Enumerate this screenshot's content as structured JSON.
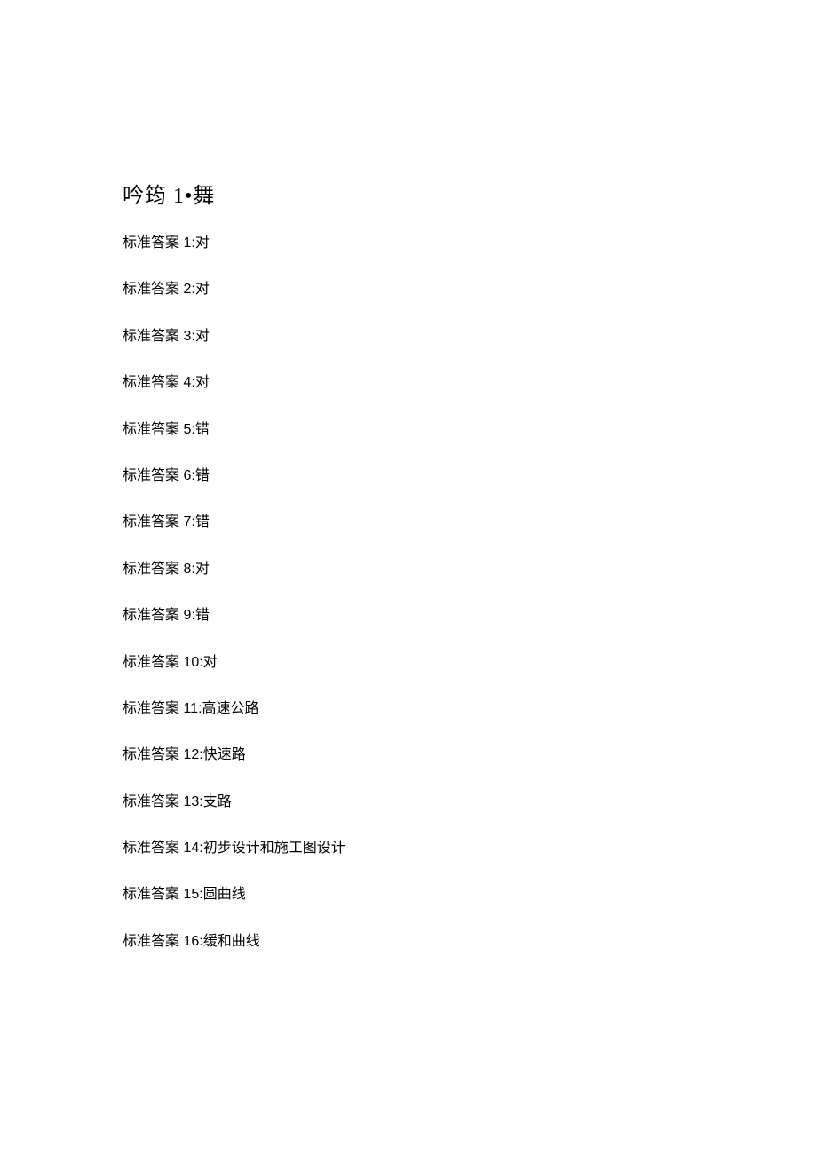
{
  "title": "吟筠 1•舞",
  "answer_label_prefix": "标准答案 ",
  "answers": [
    {
      "n": "1",
      "sep": ":",
      "value": "对"
    },
    {
      "n": "2",
      "sep": ":",
      "value": "对"
    },
    {
      "n": "3",
      "sep": ":",
      "value": "对"
    },
    {
      "n": "4",
      "sep": ":",
      "value": "对"
    },
    {
      "n": "5",
      "sep": ":",
      "value": "错"
    },
    {
      "n": "6",
      "sep": ":",
      "value": "错"
    },
    {
      "n": "7",
      "sep": ":",
      "value": "错"
    },
    {
      "n": "8",
      "sep": ":",
      "value": "对"
    },
    {
      "n": "9",
      "sep": ":",
      "value": "错"
    },
    {
      "n": "10",
      "sep": ":",
      "value": "对"
    },
    {
      "n": "11",
      "sep": ":",
      "value": "高速公路"
    },
    {
      "n": "12",
      "sep": ":",
      "value": "快速路"
    },
    {
      "n": "13",
      "sep": ":",
      "value": "支路"
    },
    {
      "n": "14",
      "sep": ":",
      "value": "初步设计和施工图设计"
    },
    {
      "n": "15",
      "sep": ":",
      "value": "圆曲线"
    },
    {
      "n": "16",
      "sep": ":",
      "value": "缓和曲线"
    }
  ]
}
